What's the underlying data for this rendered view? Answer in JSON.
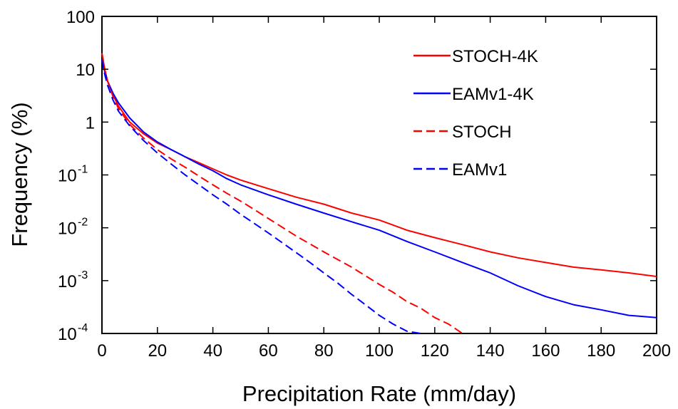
{
  "chart_data": {
    "type": "line",
    "title": "",
    "xlabel": "Precipitation Rate (mm/day)",
    "ylabel": "Frequency (%)",
    "xlim": [
      0,
      200
    ],
    "ylim": [
      0.0001,
      100
    ],
    "yscale": "log",
    "grid": false,
    "legend_position": "top-right",
    "x_ticks": [
      {
        "v": 0,
        "label": "0"
      },
      {
        "v": 20,
        "label": "20"
      },
      {
        "v": 40,
        "label": "40"
      },
      {
        "v": 60,
        "label": "60"
      },
      {
        "v": 80,
        "label": "80"
      },
      {
        "v": 100,
        "label": "100"
      },
      {
        "v": 120,
        "label": "120"
      },
      {
        "v": 140,
        "label": "140"
      },
      {
        "v": 160,
        "label": "160"
      },
      {
        "v": 180,
        "label": "180"
      },
      {
        "v": 200,
        "label": "200"
      }
    ],
    "y_ticks": [
      {
        "v": 100,
        "label": "100",
        "base": "",
        "exp": ""
      },
      {
        "v": 10,
        "label": "10",
        "base": "",
        "exp": ""
      },
      {
        "v": 1,
        "label": "1",
        "base": "",
        "exp": ""
      },
      {
        "v": 0.1,
        "label": "",
        "base": "10",
        "exp": "-1"
      },
      {
        "v": 0.01,
        "label": "",
        "base": "10",
        "exp": "-2"
      },
      {
        "v": 0.001,
        "label": "",
        "base": "10",
        "exp": "-3"
      },
      {
        "v": 0.0001,
        "label": "",
        "base": "10",
        "exp": "-4"
      }
    ],
    "series": [
      {
        "name": "STOCH-4K",
        "color": "#ff0000",
        "dash": "solid",
        "points": [
          [
            0,
            20
          ],
          [
            1,
            10
          ],
          [
            2,
            6
          ],
          [
            4,
            3.2
          ],
          [
            6,
            2
          ],
          [
            10,
            1
          ],
          [
            15,
            0.6
          ],
          [
            20,
            0.4
          ],
          [
            25,
            0.3
          ],
          [
            30,
            0.22
          ],
          [
            35,
            0.17
          ],
          [
            40,
            0.13
          ],
          [
            45,
            0.1
          ],
          [
            50,
            0.08
          ],
          [
            60,
            0.055
          ],
          [
            70,
            0.038
          ],
          [
            80,
            0.028
          ],
          [
            90,
            0.019
          ],
          [
            100,
            0.014
          ],
          [
            110,
            0.009
          ],
          [
            120,
            0.0065
          ],
          [
            130,
            0.0048
          ],
          [
            140,
            0.0035
          ],
          [
            150,
            0.0027
          ],
          [
            160,
            0.0022
          ],
          [
            170,
            0.0018
          ],
          [
            180,
            0.0016
          ],
          [
            190,
            0.0014
          ],
          [
            200,
            0.0012
          ]
        ]
      },
      {
        "name": "EAMv1-4K",
        "color": "#0000ff",
        "dash": "solid",
        "points": [
          [
            0,
            15
          ],
          [
            1,
            9
          ],
          [
            2,
            6
          ],
          [
            4,
            3.5
          ],
          [
            6,
            2.3
          ],
          [
            10,
            1.2
          ],
          [
            15,
            0.65
          ],
          [
            20,
            0.42
          ],
          [
            25,
            0.3
          ],
          [
            30,
            0.22
          ],
          [
            35,
            0.16
          ],
          [
            40,
            0.12
          ],
          [
            45,
            0.085
          ],
          [
            50,
            0.065
          ],
          [
            60,
            0.042
          ],
          [
            70,
            0.028
          ],
          [
            80,
            0.019
          ],
          [
            90,
            0.013
          ],
          [
            100,
            0.009
          ],
          [
            110,
            0.0055
          ],
          [
            120,
            0.0035
          ],
          [
            130,
            0.0022
          ],
          [
            140,
            0.0014
          ],
          [
            150,
            0.0008
          ],
          [
            160,
            0.0005
          ],
          [
            170,
            0.00035
          ],
          [
            180,
            0.00028
          ],
          [
            190,
            0.00022
          ],
          [
            200,
            0.0002
          ]
        ]
      },
      {
        "name": "STOCH",
        "color": "#ff0000",
        "dash": "dashed",
        "points": [
          [
            0,
            20
          ],
          [
            1,
            10
          ],
          [
            2,
            6
          ],
          [
            4,
            3
          ],
          [
            6,
            1.8
          ],
          [
            10,
            0.9
          ],
          [
            15,
            0.5
          ],
          [
            20,
            0.3
          ],
          [
            25,
            0.2
          ],
          [
            30,
            0.14
          ],
          [
            35,
            0.095
          ],
          [
            40,
            0.065
          ],
          [
            45,
            0.045
          ],
          [
            50,
            0.032
          ],
          [
            55,
            0.022
          ],
          [
            60,
            0.015
          ],
          [
            70,
            0.007
          ],
          [
            80,
            0.0035
          ],
          [
            90,
            0.0018
          ],
          [
            100,
            0.00085
          ],
          [
            105,
            0.0006
          ],
          [
            110,
            0.0004
          ],
          [
            115,
            0.0003
          ],
          [
            120,
            0.0002
          ],
          [
            125,
            0.00015
          ],
          [
            130,
            0.0001
          ]
        ]
      },
      {
        "name": "EAMv1",
        "color": "#0000ff",
        "dash": "dashed",
        "points": [
          [
            0,
            15
          ],
          [
            1,
            8
          ],
          [
            2,
            5
          ],
          [
            4,
            2.6
          ],
          [
            6,
            1.6
          ],
          [
            10,
            0.85
          ],
          [
            15,
            0.45
          ],
          [
            20,
            0.26
          ],
          [
            25,
            0.16
          ],
          [
            30,
            0.1
          ],
          [
            35,
            0.065
          ],
          [
            40,
            0.042
          ],
          [
            45,
            0.028
          ],
          [
            50,
            0.018
          ],
          [
            55,
            0.012
          ],
          [
            60,
            0.008
          ],
          [
            65,
            0.0052
          ],
          [
            70,
            0.0034
          ],
          [
            75,
            0.0022
          ],
          [
            80,
            0.0014
          ],
          [
            85,
            0.0009
          ],
          [
            90,
            0.00055
          ],
          [
            95,
            0.00035
          ],
          [
            100,
            0.00022
          ],
          [
            105,
            0.00015
          ],
          [
            110,
            0.00011
          ],
          [
            115,
            0.0001
          ]
        ]
      }
    ]
  }
}
